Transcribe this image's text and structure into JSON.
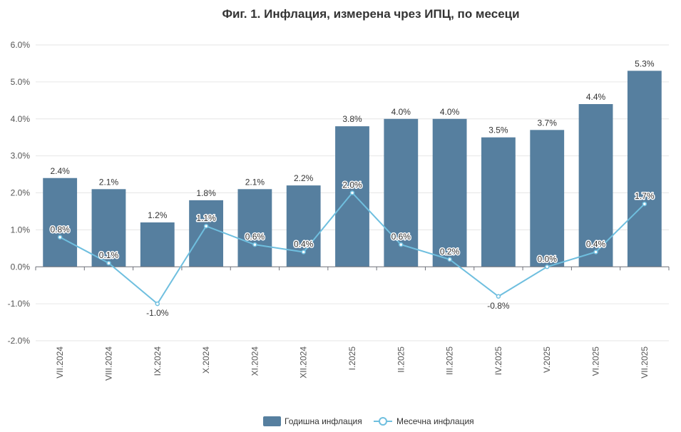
{
  "chart_data": {
    "type": "bar",
    "title": "Фиг. 1. Инфлация, измерена чрез ИПЦ, по месеци",
    "categories": [
      "VII.2024",
      "VIII.2024",
      "IX.2024",
      "X.2024",
      "XI.2024",
      "XII.2024",
      "I.2025",
      "II.2025",
      "III.2025",
      "IV.2025",
      "V.2025",
      "VI.2025",
      "VII.2025"
    ],
    "series": [
      {
        "name": "Годишна инфлация",
        "type": "bar",
        "color": "#567f9f",
        "values": [
          2.4,
          2.1,
          1.2,
          1.8,
          2.1,
          2.2,
          3.8,
          4.0,
          4.0,
          3.5,
          3.7,
          4.4,
          5.3
        ],
        "labels": [
          "2.4%",
          "2.1%",
          "1.2%",
          "1.8%",
          "2.1%",
          "2.2%",
          "3.8%",
          "4.0%",
          "4.0%",
          "3.5%",
          "3.7%",
          "4.4%",
          "5.3%"
        ]
      },
      {
        "name": "Месечна инфлация",
        "type": "line",
        "color": "#6fbfdf",
        "values": [
          0.8,
          0.1,
          -1.0,
          1.1,
          0.6,
          0.4,
          2.0,
          0.6,
          0.2,
          -0.8,
          0.0,
          0.4,
          1.7
        ],
        "labels": [
          "0.8%",
          "0.1%",
          "-1.0%",
          "1.1%",
          "0.6%",
          "0.4%",
          "2.0%",
          "0.6%",
          "0.2%",
          "-0.8%",
          "0.0%",
          "0.4%",
          "1.7%"
        ]
      }
    ],
    "ylim": [
      -2.0,
      6.0
    ],
    "yticks": [
      -2.0,
      -1.0,
      0.0,
      1.0,
      2.0,
      3.0,
      4.0,
      5.0,
      6.0
    ],
    "ytick_labels": [
      "-2.0%",
      "-1.0%",
      "0.0%",
      "1.0%",
      "2.0%",
      "3.0%",
      "4.0%",
      "5.0%",
      "6.0%"
    ],
    "grid": true,
    "legend": "bottom-center"
  }
}
